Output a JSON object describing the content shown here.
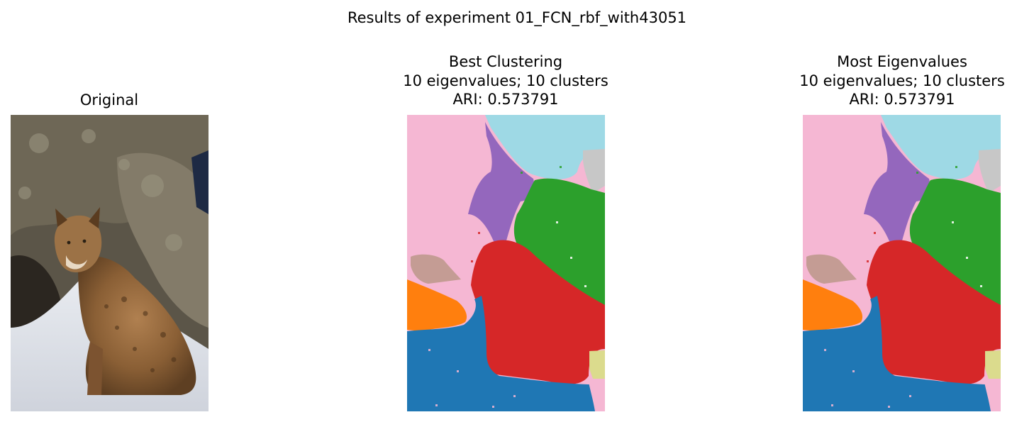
{
  "figure": {
    "suptitle": "Results of experiment 01_FCN_rbf_with43051"
  },
  "panels": {
    "original": {
      "title": "Original",
      "image": "bobcat-photo"
    },
    "best": {
      "title_line1": "Best Clustering",
      "title_line2": "10 eigenvalues; 10 clusters",
      "title_line3": "ARI: 0.573791",
      "image": "segmentation-map"
    },
    "most": {
      "title_line1": "Most Eigenvalues",
      "title_line2": "10 eigenvalues; 10 clusters",
      "title_line3": "ARI: 0.573791",
      "image": "segmentation-map"
    }
  },
  "cluster_colors": {
    "pink": "#f5b7d3",
    "light_blue": "#9ed9e5",
    "purple": "#9467bd",
    "green": "#2ca02c",
    "red": "#d62728",
    "brown": "#c49c94",
    "orange": "#ff7f0e",
    "blue": "#1f77b4",
    "gray": "#c7c7c7",
    "olive": "#dbdb8d"
  }
}
